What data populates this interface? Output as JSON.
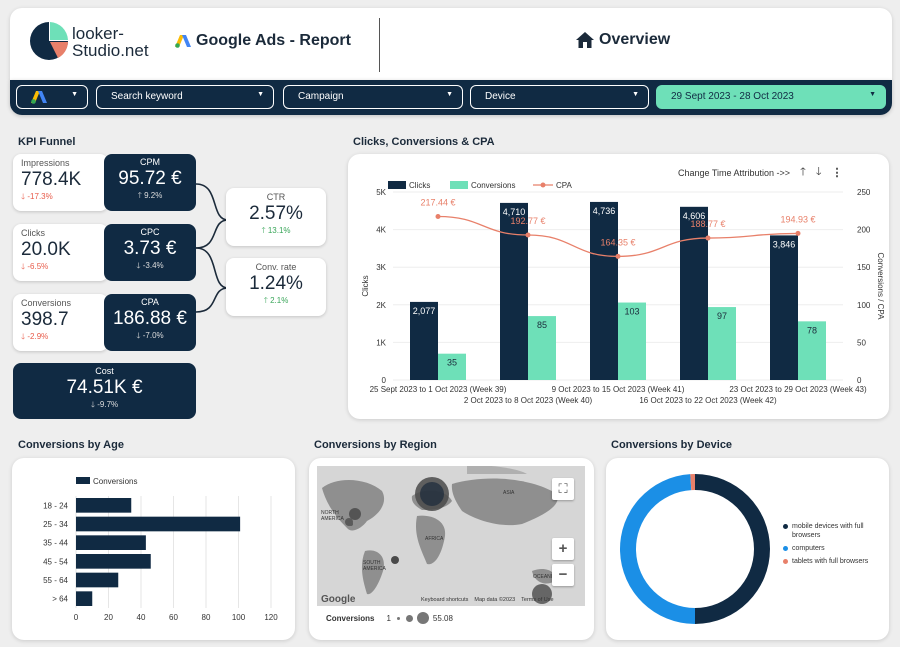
{
  "header": {
    "logo_text_1": "looker-",
    "logo_text_2": "Studio.net",
    "report_title": "Google Ads - Report",
    "page_title": "Overview"
  },
  "filters": {
    "keyword": "Search keyword",
    "campaign": "Campaign",
    "device": "Device",
    "date_range": "29 Sept 2023 - 28 Oct 2023"
  },
  "kpi": {
    "section_title": "KPI Funnel",
    "impressions": {
      "label": "Impressions",
      "value": "778.4K",
      "delta": "-17.3%"
    },
    "cpm": {
      "label": "CPM",
      "value": "95.72 €",
      "delta": "9.2%"
    },
    "ctr": {
      "label": "CTR",
      "value": "2.57%",
      "delta": "13.1%"
    },
    "clicks": {
      "label": "Clicks",
      "value": "20.0K",
      "delta": "-6.5%"
    },
    "cpc": {
      "label": "CPC",
      "value": "3.73 €",
      "delta": "-3.4%"
    },
    "conv_rate": {
      "label": "Conv. rate",
      "value": "1.24%",
      "delta": "2.1%"
    },
    "conversions": {
      "label": "Conversions",
      "value": "398.7",
      "delta": "-2.9%"
    },
    "cpa": {
      "label": "CPA",
      "value": "186.88 €",
      "delta": "-7.0%"
    },
    "cost": {
      "label": "Cost",
      "value": "74.51K €",
      "delta": "-9.7%"
    }
  },
  "clicks_chart": {
    "section_title": "Clicks, Conversions & CPA",
    "toolbar_text": "Change Time Attribution ->>",
    "left_axis_title": "Clicks",
    "right_axis_title": "Conversions / CPA",
    "legend": [
      "Clicks",
      "Conversions",
      "CPA"
    ],
    "left_ticks": [
      "5K",
      "4K",
      "3K",
      "2K",
      "1K",
      "0"
    ],
    "right_ticks": [
      "250",
      "200",
      "150",
      "100",
      "50",
      "0"
    ],
    "click_labels": [
      "2,077",
      "4,710",
      "4,736",
      "4,606",
      "3,846"
    ],
    "conv_labels": [
      "35",
      "85",
      "103",
      "97",
      "78"
    ],
    "cpa_labels": [
      "217.44 €",
      "192.77 €",
      "164.35 €",
      "188.77 €",
      "194.93 €"
    ],
    "x_labels_top": [
      "25 Sept 2023 to 1 Oct 2023 (Week 39)",
      "9 Oct 2023 to 15 Oct 2023 (Week 41)",
      "23 Oct 2023 to 29 Oct 2023 (Week 43)"
    ],
    "x_labels_bottom": [
      "2 Oct 2023 to 8 Oct 2023 (Week 40)",
      "16 Oct 2023 to 22 Oct 2023 (Week 42)"
    ]
  },
  "age_chart": {
    "section_title": "Conversions by Age",
    "legend": "Conversions",
    "x_ticks": [
      "0",
      "20",
      "40",
      "60",
      "80",
      "100",
      "120"
    ]
  },
  "region": {
    "section_title": "Conversions by Region",
    "labels": [
      "NORTH AMERICA",
      "ASIA",
      "AFRICA",
      "SOUTH AMERICA",
      "OCEANIA"
    ],
    "footer_1": "Keyboard shortcuts",
    "footer_2": "Map data ©2023",
    "footer_3": "Terms of Use",
    "google": "Google",
    "legend_label": "Conversions",
    "legend_min": "1",
    "legend_max": "55.08",
    "zoom_in": "+",
    "zoom_out": "−"
  },
  "device": {
    "section_title": "Conversions by Device",
    "legend": [
      "mobile devices with full browsers",
      "computers",
      "tablets with full browsers"
    ]
  },
  "chart_data": [
    {
      "type": "bar",
      "title": "Clicks, Conversions & CPA",
      "categories": [
        "25 Sept 2023 to 1 Oct 2023 (Week 39)",
        "2 Oct 2023 to 8 Oct 2023 (Week 40)",
        "9 Oct 2023 to 15 Oct 2023 (Week 41)",
        "16 Oct 2023 to 22 Oct 2023 (Week 42)",
        "23 Oct 2023 to 29 Oct 2023 (Week 43)"
      ],
      "series": [
        {
          "name": "Clicks",
          "values": [
            2077,
            4710,
            4736,
            4606,
            3846
          ],
          "axis": "left",
          "color": "#102a43"
        },
        {
          "name": "Conversions",
          "values": [
            35,
            85,
            103,
            97,
            78
          ],
          "axis": "right",
          "color": "#6ee0b8"
        },
        {
          "name": "CPA",
          "values": [
            217.44,
            192.77,
            164.35,
            188.77,
            194.93
          ],
          "axis": "right",
          "color": "#e8806a",
          "kind": "line"
        }
      ],
      "ylim_left": [
        0,
        5000
      ],
      "ylim_right": [
        0,
        250
      ],
      "ylabel": "Clicks",
      "ylabel_right": "Conversions / CPA",
      "legend_position": "top-left"
    },
    {
      "type": "bar",
      "orientation": "horizontal",
      "title": "Conversions by Age",
      "categories": [
        "18 - 24",
        "25 - 34",
        "35 - 44",
        "45 - 54",
        "55 - 64",
        "> 64"
      ],
      "values": [
        34,
        101,
        43,
        46,
        26,
        10
      ],
      "xlim": [
        0,
        120
      ],
      "color": "#102a43"
    },
    {
      "type": "pie",
      "title": "Conversions by Device",
      "categories": [
        "mobile devices with full browsers",
        "computers",
        "tablets with full browsers"
      ],
      "values": [
        50.0,
        49.0,
        1.0
      ],
      "colors": [
        "#102a43",
        "#1b8fe6",
        "#e8806a"
      ]
    }
  ]
}
